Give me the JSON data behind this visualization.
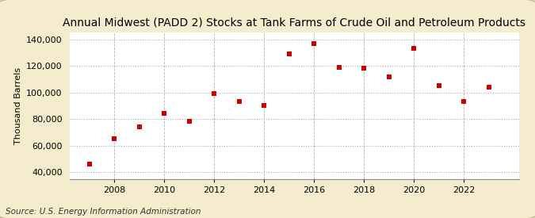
{
  "title": "Annual Midwest (PADD 2) Stocks at Tank Farms of Crude Oil and Petroleum Products",
  "ylabel": "Thousand Barrels",
  "source": "Source: U.S. Energy Information Administration",
  "years": [
    2007,
    2008,
    2009,
    2010,
    2011,
    2012,
    2013,
    2014,
    2015,
    2016,
    2017,
    2018,
    2019,
    2020,
    2021,
    2022,
    2023
  ],
  "values": [
    46000,
    65000,
    74000,
    84000,
    78000,
    99000,
    93000,
    90000,
    129000,
    137000,
    119000,
    118000,
    112000,
    133000,
    105000,
    93000,
    104000
  ],
  "ylim": [
    35000,
    145000
  ],
  "yticks": [
    40000,
    60000,
    80000,
    100000,
    120000,
    140000
  ],
  "xticks": [
    2008,
    2010,
    2012,
    2014,
    2016,
    2018,
    2020,
    2022
  ],
  "xlim": [
    2006.2,
    2024.2
  ],
  "marker_color": "#cc0000",
  "marker": "s",
  "marker_size": 5,
  "fig_bg_color": "#f5ecce",
  "plot_bg_color": "#ffffff",
  "grid_color": "#aaaaaa",
  "title_fontsize": 10,
  "label_fontsize": 8,
  "tick_fontsize": 8,
  "source_fontsize": 7.5
}
